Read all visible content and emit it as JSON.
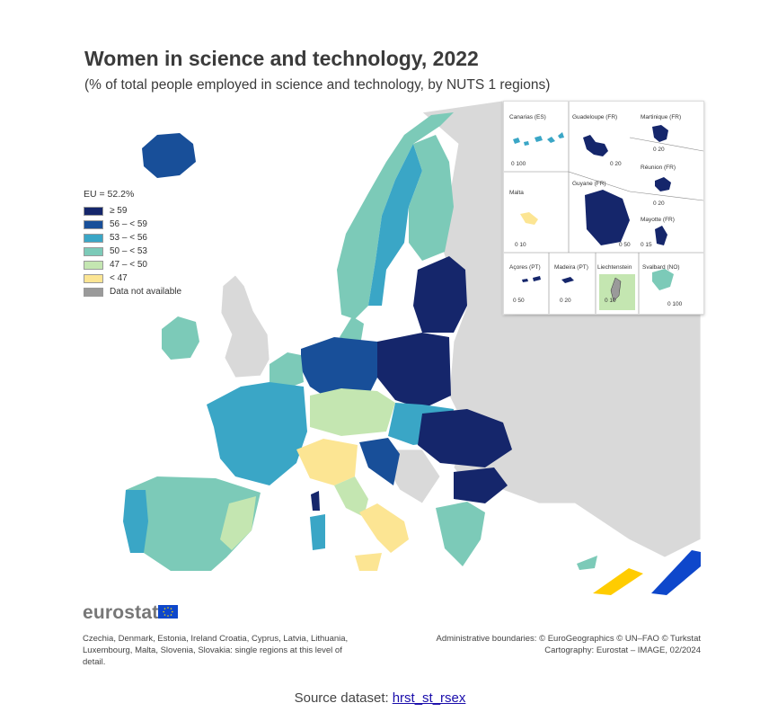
{
  "title": "Women in science and technology, 2022",
  "subtitle": "(% of total people employed in science and technology, by NUTS 1 regions)",
  "legend": {
    "title": "EU = 52.2%",
    "items": [
      {
        "label": "≥ 59",
        "color": "#15266b"
      },
      {
        "label": "56 – < 59",
        "color": "#184f99"
      },
      {
        "label": "53 – < 56",
        "color": "#3aa6c6"
      },
      {
        "label": "50 – < 53",
        "color": "#7ccab8"
      },
      {
        "label": "47 – < 50",
        "color": "#c4e6b1"
      },
      {
        "label": "< 47",
        "color": "#fce593"
      },
      {
        "label": "Data not available",
        "color": "#9a9a9a"
      }
    ]
  },
  "insets": {
    "canarias": "Canarias (ES)",
    "guadeloupe": "Guadeloupe (FR)",
    "martinique": "Martinique (FR)",
    "reunion": "Réunion (FR)",
    "malta": "Malta",
    "guyane": "Guyane (FR)",
    "mayotte": "Mayotte (FR)",
    "acores": "Açores (PT)",
    "madeira": "Madeira (PT)",
    "liechtenstein": "Liechtenstein",
    "svalbard": "Svalbard (NO)",
    "scales": {
      "canarias": "0  100",
      "guadeloupe": "0  20",
      "martinique": "0  20",
      "reunion": "0  20",
      "malta": "0  10",
      "guyane": "0  50",
      "mayotte": "0  15",
      "acores": "0  50",
      "madeira": "0  20",
      "liechtenstein": "0  10",
      "svalbard": "0  100"
    }
  },
  "logo": "eurostat",
  "note": "Czechia, Denmark, Estonia, Ireland Croatia, Cyprus, Latvia, Lithuania, Luxembourg, Malta, Slovenia, Slovakia: single regions at this level of detail.",
  "credits": {
    "line1": "Administrative boundaries: © EuroGeographics © UN–FAO © Turkstat",
    "line2": "Cartography: Eurostat – IMAGE, 02/2024"
  },
  "source": {
    "label": "Source dataset:",
    "link_text": "hrst_st_rsex"
  },
  "colors": {
    "c59": "#15266b",
    "c56": "#184f99",
    "c53": "#3aa6c6",
    "c50": "#7ccab8",
    "c47": "#c4e6b1",
    "c45": "#fce593",
    "na": "#9a9a9a",
    "nonEU": "#d9d9d9",
    "sea": "#ffffff"
  }
}
